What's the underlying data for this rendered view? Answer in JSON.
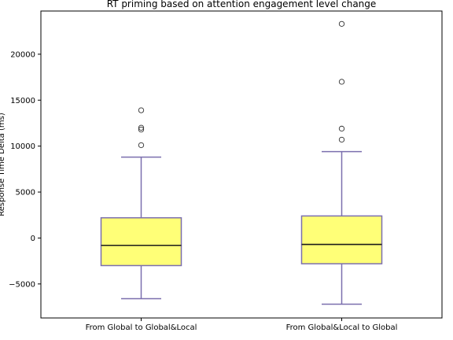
{
  "chart_data": {
    "type": "boxplot",
    "title": "RT priming based on attention engagement level change",
    "ylabel": "Response Time Delta (ms)",
    "xlabel": "",
    "ylim": [
      -8700,
      24700
    ],
    "yticks": [
      -5000,
      0,
      5000,
      10000,
      15000,
      20000
    ],
    "ytick_labels": [
      "−5000",
      "0",
      "5000",
      "10000",
      "15000",
      "20000"
    ],
    "grid": false,
    "categories": [
      "From Global to Global&Local",
      "From Global&Local to Global"
    ],
    "boxes": [
      {
        "name": "From Global to Global&Local",
        "whisker_low": -6600,
        "q1": -3000,
        "median": -800,
        "q3": 2200,
        "whisker_high": 8800,
        "outliers": [
          10100,
          11800,
          12000,
          13900
        ]
      },
      {
        "name": "From Global&Local to Global",
        "whisker_low": -7200,
        "q1": -2800,
        "median": -700,
        "q3": 2400,
        "whisker_high": 9400,
        "outliers": [
          10700,
          11900,
          17000,
          23300
        ]
      }
    ],
    "colors": {
      "box_fill": "#ffff77",
      "box_edge": "#7b6fae",
      "whisker": "#7b6fae",
      "median": "#1a1a1a",
      "axis": "#000000"
    }
  }
}
